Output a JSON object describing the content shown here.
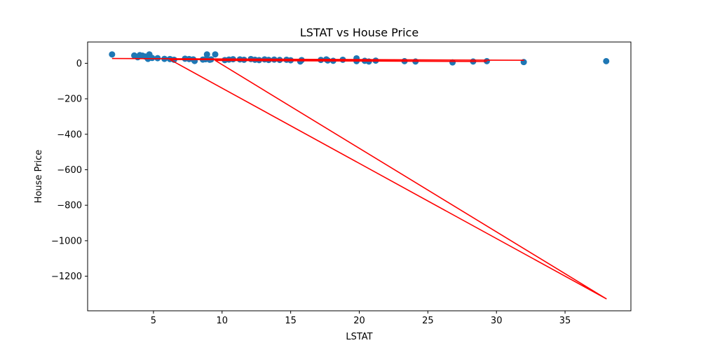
{
  "chart_data": {
    "type": "scatter",
    "title": "LSTAT vs House Price",
    "xlabel": "LSTAT",
    "ylabel": "House Price",
    "xlim": [
      0.2,
      39.8
    ],
    "ylim": [
      -1395,
      120
    ],
    "xticks": [
      5,
      10,
      15,
      20,
      25,
      30,
      35
    ],
    "yticks": [
      0,
      -200,
      -400,
      -600,
      -800,
      -1000,
      -1200
    ],
    "xtick_labels": [
      "5",
      "10",
      "15",
      "20",
      "25",
      "30",
      "35"
    ],
    "ytick_labels": [
      "0",
      "−200",
      "−400",
      "−600",
      "−800",
      "−1000",
      "−1200"
    ],
    "grid": false,
    "colors": {
      "scatter": "#1f77b4",
      "line": "#ff0000"
    },
    "series": [
      {
        "kind": "scatter",
        "points": [
          [
            1.98,
            50
          ],
          [
            3.6,
            44
          ],
          [
            3.85,
            34
          ],
          [
            4.0,
            46
          ],
          [
            4.2,
            43
          ],
          [
            4.4,
            38
          ],
          [
            4.6,
            25
          ],
          [
            4.7,
            50
          ],
          [
            4.9,
            30
          ],
          [
            5.3,
            29
          ],
          [
            5.8,
            25
          ],
          [
            6.2,
            24
          ],
          [
            6.5,
            20
          ],
          [
            7.3,
            26
          ],
          [
            7.6,
            24
          ],
          [
            7.9,
            22
          ],
          [
            8.0,
            13
          ],
          [
            8.6,
            21
          ],
          [
            8.8,
            23
          ],
          [
            8.9,
            50
          ],
          [
            9.1,
            20
          ],
          [
            9.2,
            22
          ],
          [
            9.5,
            50
          ],
          [
            10.2,
            18
          ],
          [
            10.5,
            21
          ],
          [
            10.8,
            23
          ],
          [
            11.3,
            22
          ],
          [
            11.6,
            20
          ],
          [
            12.1,
            24
          ],
          [
            12.4,
            20
          ],
          [
            12.7,
            18
          ],
          [
            13.1,
            22
          ],
          [
            13.4,
            19
          ],
          [
            13.8,
            21
          ],
          [
            14.2,
            19
          ],
          [
            14.7,
            20
          ],
          [
            15.0,
            17
          ],
          [
            15.7,
            10
          ],
          [
            15.8,
            18
          ],
          [
            17.2,
            19
          ],
          [
            17.6,
            22
          ],
          [
            17.7,
            16
          ],
          [
            18.1,
            14
          ],
          [
            18.8,
            20
          ],
          [
            19.8,
            28
          ],
          [
            19.8,
            12
          ],
          [
            20.4,
            14
          ],
          [
            20.7,
            10
          ],
          [
            21.2,
            15
          ],
          [
            23.3,
            12
          ],
          [
            24.1,
            10
          ],
          [
            26.8,
            5
          ],
          [
            28.3,
            10
          ],
          [
            29.3,
            12
          ],
          [
            31.99,
            7
          ],
          [
            38.0,
            12
          ]
        ]
      },
      {
        "kind": "line",
        "points": [
          [
            1.98,
            27
          ],
          [
            31.99,
            17
          ],
          [
            6.2,
            21
          ],
          [
            38.0,
            -1327
          ],
          [
            9.5,
            16
          ],
          [
            29.3,
            10
          ]
        ]
      }
    ]
  }
}
